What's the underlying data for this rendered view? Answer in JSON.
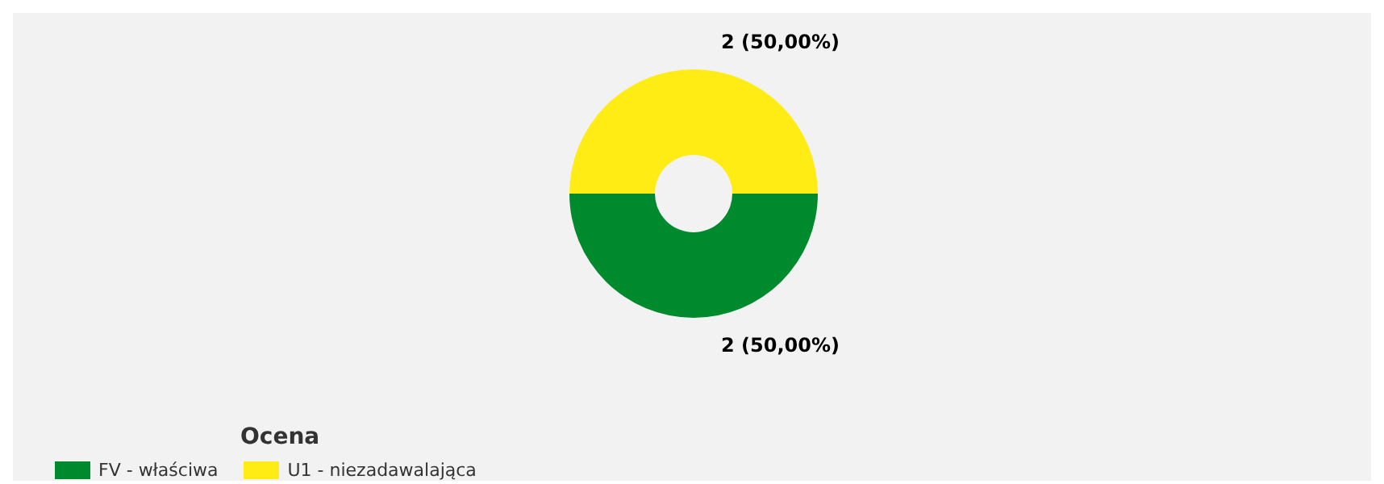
{
  "chart_data": {
    "type": "donut",
    "categories": [
      "FV - właściwa",
      "U1 - niezadawalająca"
    ],
    "values": [
      2,
      2
    ],
    "colors": [
      "#008a2e",
      "#ffec14"
    ],
    "value_labels": [
      "2 (50,00%)",
      "2 (50,00%)"
    ],
    "legend_title": "Ocena",
    "legend": "bottom left"
  }
}
